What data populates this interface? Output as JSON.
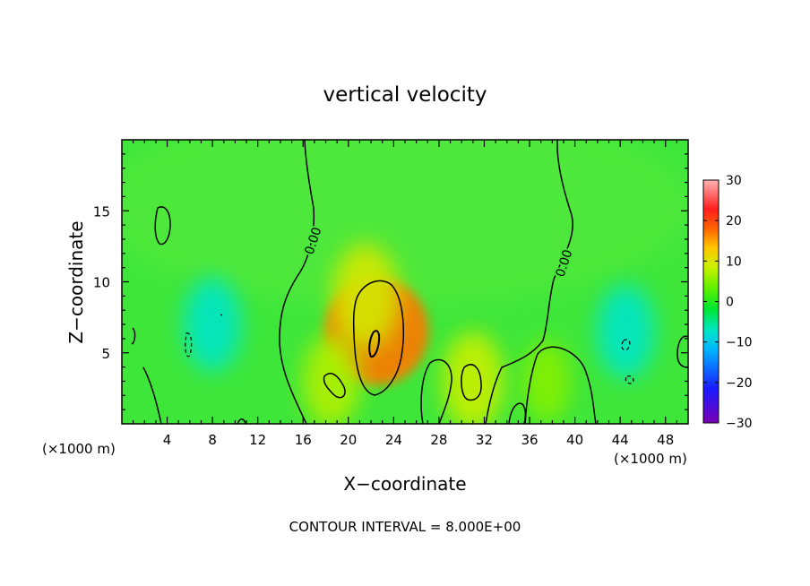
{
  "chart_data": {
    "type": "heatmap",
    "title": "vertical velocity",
    "xlabel": "X−coordinate",
    "ylabel": "Z−coordinate",
    "x_unit_left": "(×1000 m)",
    "x_unit_right": "(×1000 m)",
    "xlim": [
      0,
      50
    ],
    "ylim": [
      0,
      20
    ],
    "x_ticks": [
      4,
      8,
      12,
      16,
      20,
      24,
      28,
      32,
      36,
      40,
      44,
      48
    ],
    "y_ticks": [
      5,
      10,
      15
    ],
    "x_tick_labels": [
      "4",
      "8",
      "12",
      "16",
      "20",
      "24",
      "28",
      "32",
      "36",
      "40",
      "44",
      "48"
    ],
    "y_tick_labels": [
      "5",
      "10",
      "15"
    ],
    "contour_interval_text": "CONTOUR INTERVAL = 8.000E+00",
    "contour_labels": [
      "0.00",
      "0.00"
    ],
    "colorbar": {
      "min": -30,
      "max": 30,
      "ticks": [
        30,
        20,
        10,
        0,
        -10,
        -20,
        -30
      ],
      "tick_labels": [
        "30",
        "20",
        "10",
        "0",
        "−10",
        "−20",
        "−30"
      ]
    },
    "features": [
      {
        "name": "updraft core",
        "x": 22.5,
        "z": 6.5,
        "value": 17
      },
      {
        "name": "updraft",
        "x": 21.5,
        "z": 9.0,
        "value": 9
      },
      {
        "name": "updraft",
        "x": 31.0,
        "z": 3.0,
        "value": 8
      },
      {
        "name": "updraft",
        "x": 18.5,
        "z": 3.0,
        "value": 7
      },
      {
        "name": "updraft",
        "x": 37.5,
        "z": 3.0,
        "value": 5
      },
      {
        "name": "downdraft",
        "x": 8.0,
        "z": 7.0,
        "value": -7
      },
      {
        "name": "downdraft",
        "x": 44.5,
        "z": 6.5,
        "value": -7
      }
    ]
  }
}
